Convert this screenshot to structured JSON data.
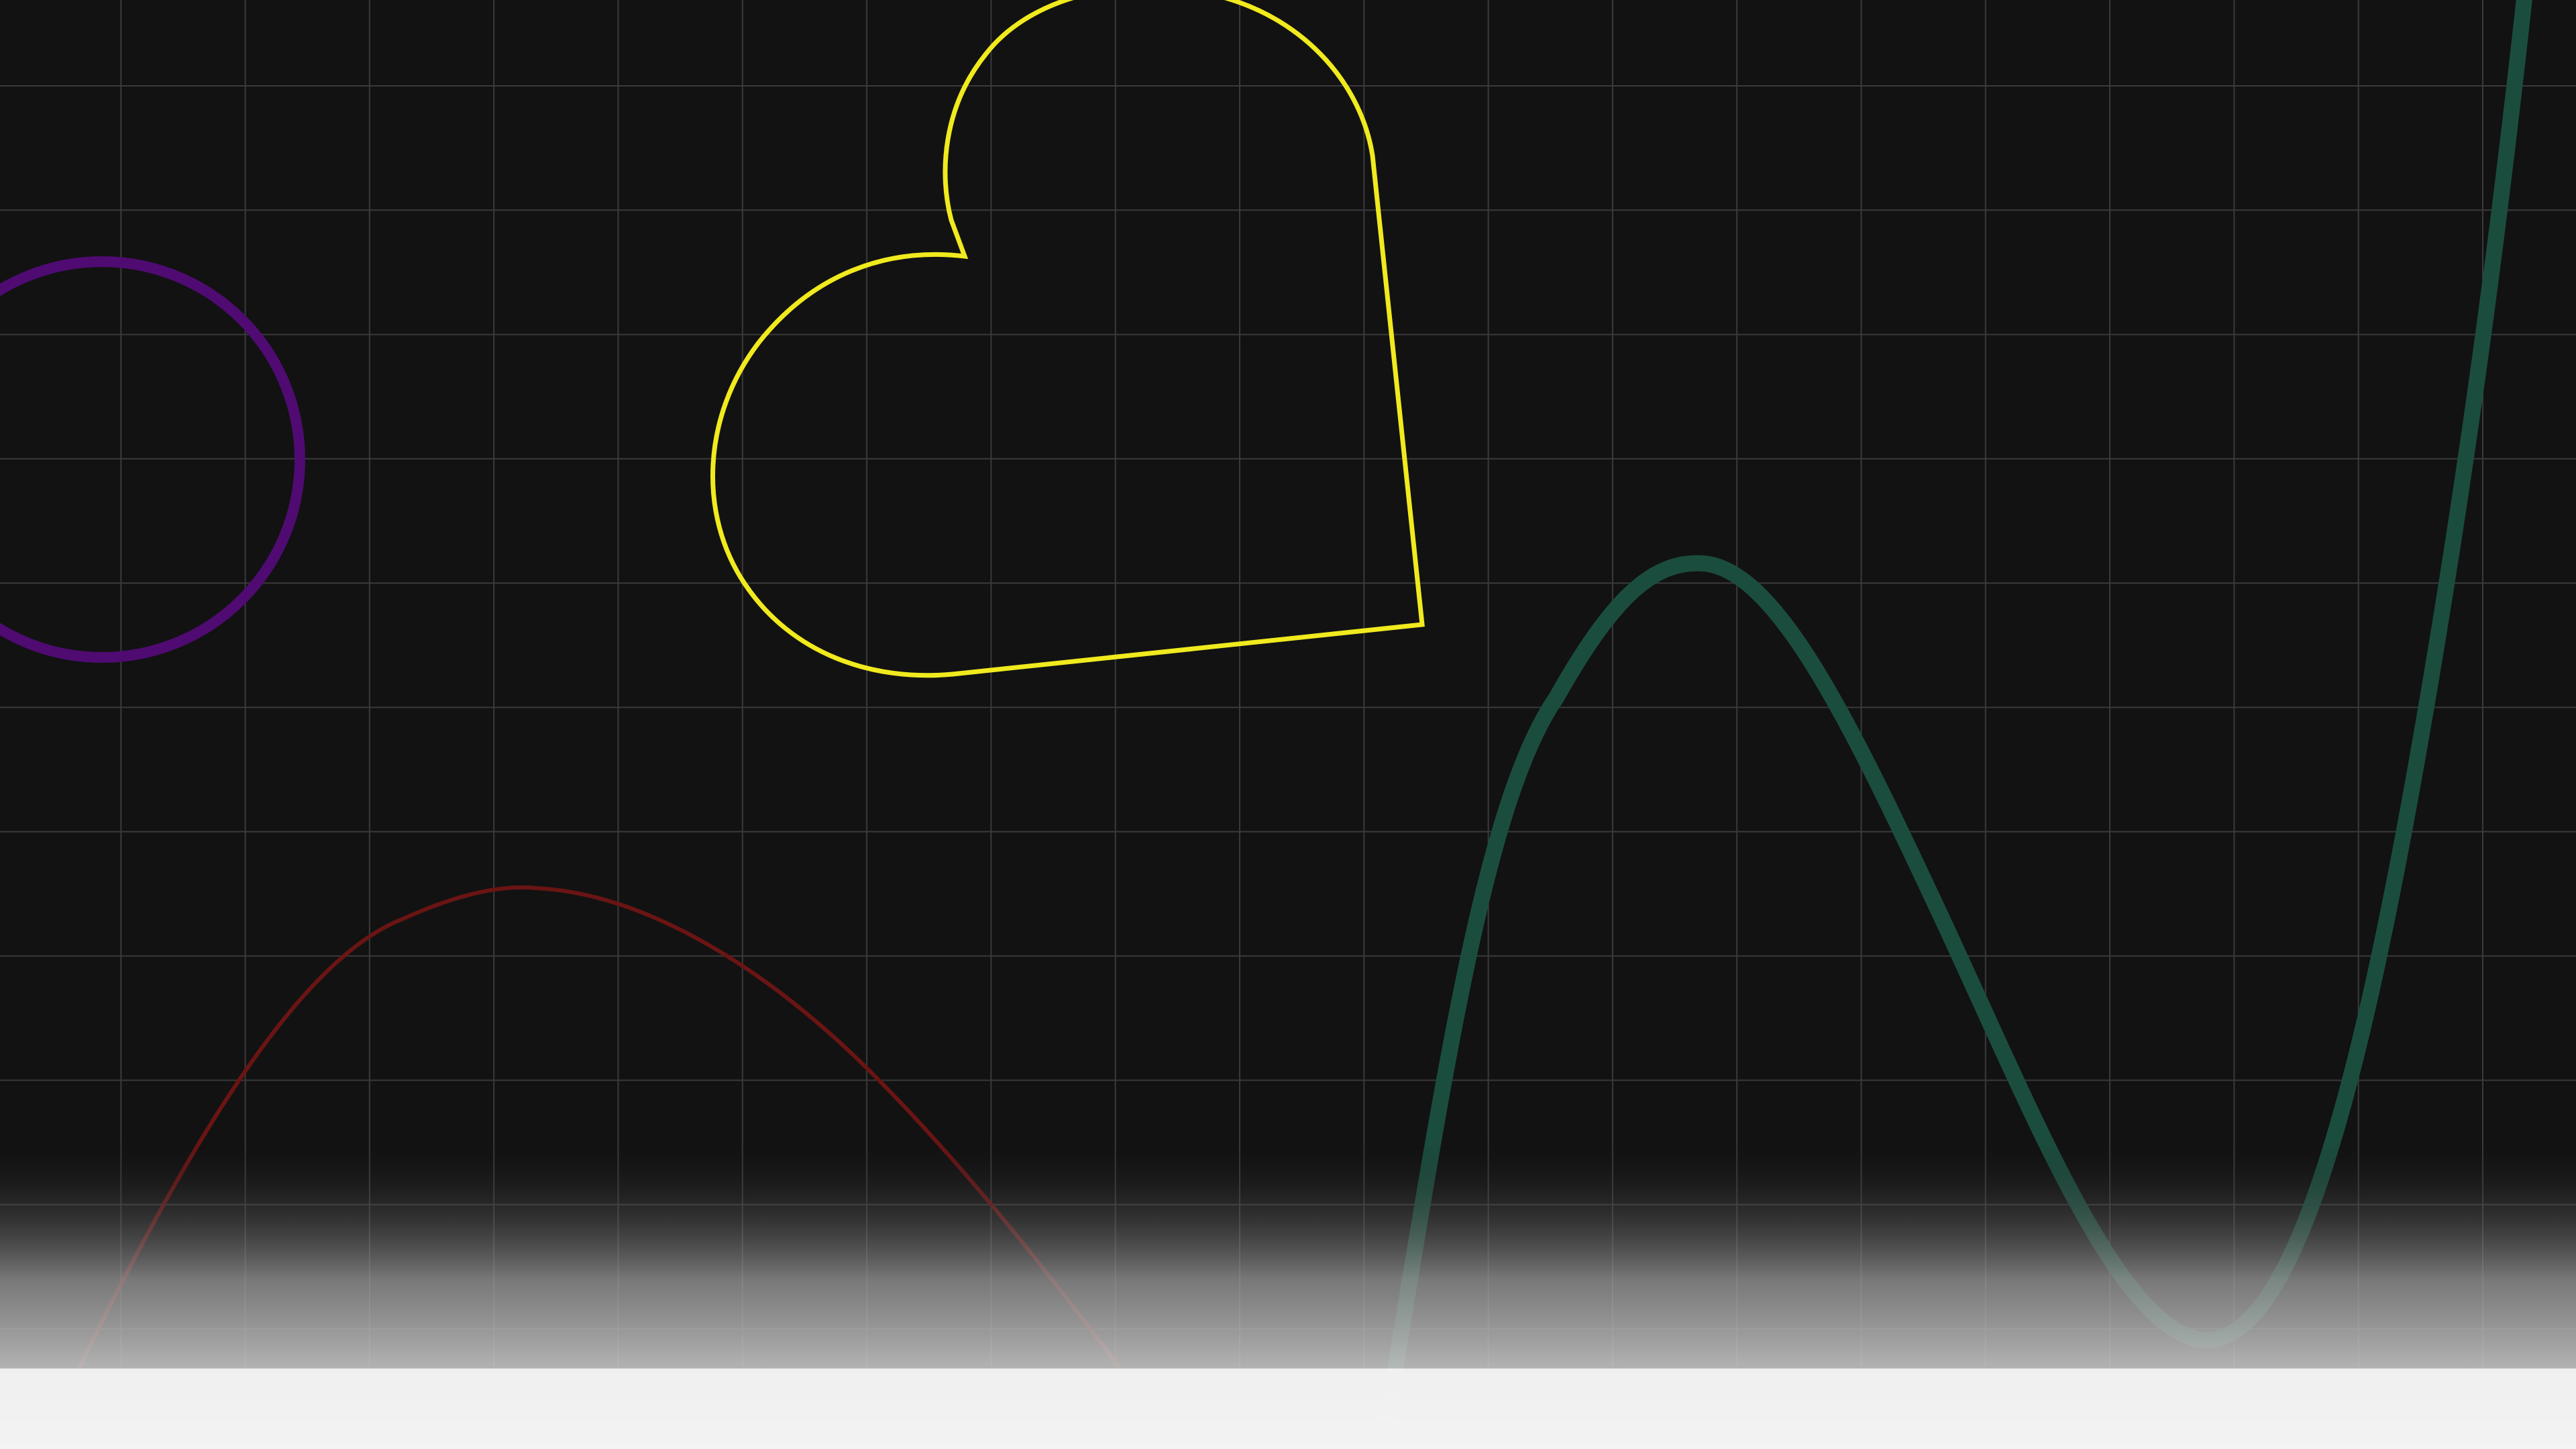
{
  "colors": {
    "background": "#121212",
    "grid_line": "#3a3a3a",
    "circle_stroke": "#4f0b72",
    "heart_stroke": "#f0ea1e",
    "red_curve_stroke": "#6a1414",
    "green_curve_stroke": "#1b4d3e",
    "fade_to": "#f2f2f2"
  },
  "shapes": [
    {
      "kind": "circle",
      "name": "purple-circle",
      "color": "purple"
    },
    {
      "kind": "heart",
      "name": "yellow-heart",
      "color": "yellow"
    },
    {
      "kind": "curve",
      "name": "red-arch-curve",
      "color": "red"
    },
    {
      "kind": "curve",
      "name": "green-wave-curve",
      "color": "green"
    }
  ]
}
